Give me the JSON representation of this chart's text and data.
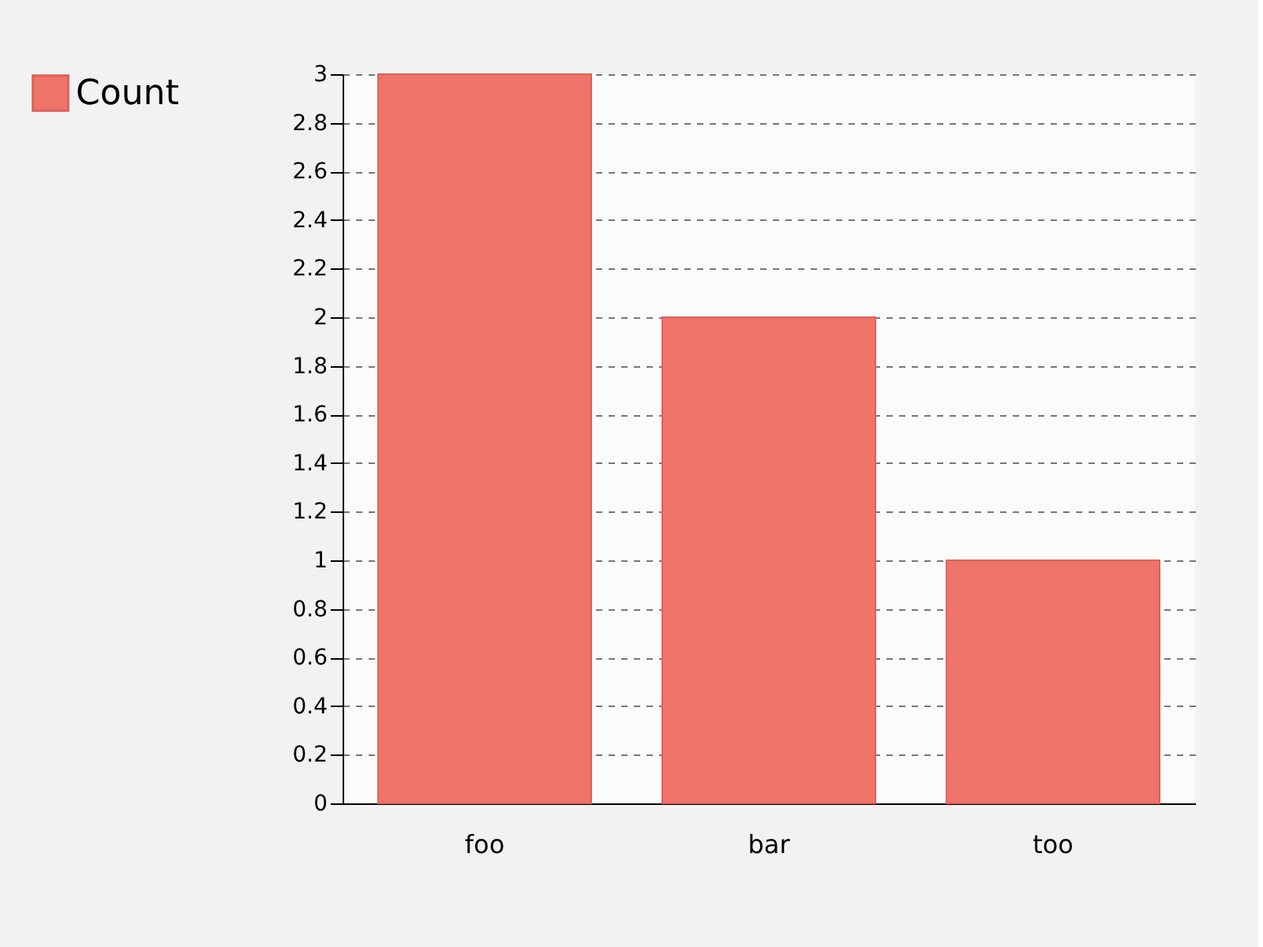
{
  "chart_data": {
    "type": "bar",
    "categories": [
      "foo",
      "bar",
      "too"
    ],
    "series": [
      {
        "name": "Count",
        "color": "#ee7469",
        "values": [
          3,
          2,
          1
        ]
      }
    ],
    "ylim": [
      0,
      3
    ],
    "yticks": [
      0,
      0.2,
      0.4,
      0.6,
      0.8,
      1,
      1.2,
      1.4,
      1.6,
      1.8,
      2,
      2.2,
      2.4,
      2.6,
      2.8,
      3
    ],
    "grid": "y",
    "legend": "top left"
  }
}
